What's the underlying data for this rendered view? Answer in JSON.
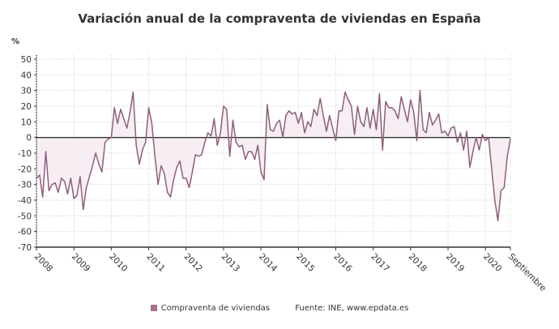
{
  "chart_data": {
    "type": "line",
    "title": "Variación anual de la compraventa de viviendas en España",
    "ylabel": "%",
    "ylim": [
      -70,
      50
    ],
    "yticks": [
      50,
      40,
      30,
      20,
      10,
      0,
      -10,
      -20,
      -30,
      -40,
      -50,
      -60,
      -70
    ],
    "xticks": [
      "2008",
      "2009",
      "2010",
      "2011",
      "2012",
      "2013",
      "2014",
      "2015",
      "2016",
      "2017",
      "2018",
      "2019",
      "2020",
      "Septiembre"
    ],
    "x_start": "2008-01",
    "x_end": "2020-09",
    "frequency": "monthly",
    "grid": true,
    "legend_position": "bottom",
    "series": [
      {
        "name": "Compraventa de viviendas",
        "color": "#8e5f7c",
        "values": [
          -26,
          -24,
          -38,
          -9,
          -34,
          -30,
          -29,
          -35,
          -26,
          -28,
          -36,
          -26,
          -39,
          -37,
          -25,
          -46,
          -32,
          -25,
          -18,
          -10,
          -17,
          -22,
          -3,
          -1,
          0,
          19,
          9,
          18,
          12,
          6,
          16,
          29,
          -5,
          -17,
          -8,
          -3,
          19,
          9,
          -12,
          -30,
          -18,
          -23,
          -35,
          -38,
          -27,
          -19,
          -15,
          -26,
          -26,
          -32,
          -22,
          -11,
          -12,
          -11,
          -3,
          3,
          1,
          12,
          -5,
          3,
          20,
          18,
          -12,
          11,
          -3,
          -6,
          -5,
          -14,
          -9,
          -9,
          -14,
          -5,
          -22,
          -27,
          21,
          5,
          4,
          9,
          11,
          0,
          14,
          17,
          15,
          16,
          9,
          16,
          3,
          10,
          7,
          18,
          14,
          25,
          14,
          4,
          14,
          6,
          -2,
          17,
          17,
          29,
          24,
          20,
          2,
          20,
          10,
          7,
          19,
          6,
          18,
          5,
          28,
          -8,
          23,
          19,
          19,
          17,
          12,
          26,
          18,
          10,
          24,
          16,
          -2,
          30,
          5,
          3,
          16,
          8,
          11,
          15,
          3,
          4,
          1,
          6,
          7,
          -3,
          3,
          -8,
          4,
          -19,
          -9,
          0,
          -8,
          2,
          -2,
          0,
          -20,
          -40,
          -53,
          -34,
          -32,
          -12,
          -1
        ]
      }
    ],
    "fill_color": "#f6eef3",
    "source": "Fuente: INE, www.epdata.es"
  }
}
